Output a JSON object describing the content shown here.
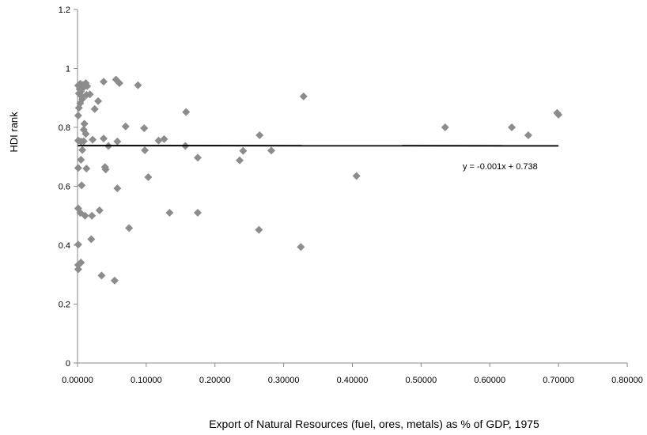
{
  "chart_data": {
    "type": "scatter",
    "title": "",
    "xlabel": "Export of Natural Resources (fuel, ores, metals) as % of GDP, 1975",
    "ylabel": "HDI rank",
    "xlim": [
      0,
      0.8
    ],
    "ylim": [
      0,
      1.2
    ],
    "x_ticks": [
      0,
      0.1,
      0.2,
      0.3,
      0.4,
      0.5,
      0.6,
      0.7,
      0.8
    ],
    "x_tick_labels": [
      "0.00000",
      "0.10000",
      "0.20000",
      "0.30000",
      "0.40000",
      "0.50000",
      "0.60000",
      "0.70000",
      "0.80000"
    ],
    "y_ticks": [
      0,
      0.2,
      0.4,
      0.6,
      0.8,
      1,
      1.2
    ],
    "y_tick_labels": [
      "0",
      "0.2",
      "0.4",
      "0.6",
      "0.8",
      "1",
      "1.2"
    ],
    "grid": false,
    "legend": "none",
    "marker": "diamond",
    "marker_color": "#8c8c8c",
    "trendline": {
      "slope": -0.001,
      "intercept": 0.738,
      "equation_label": "y = -0.001x + 0.738",
      "color": "#000000"
    },
    "points": [
      [
        0.001,
        0.942
      ],
      [
        0.004,
        0.948
      ],
      [
        0.008,
        0.944
      ],
      [
        0.012,
        0.95
      ],
      [
        0.003,
        0.93
      ],
      [
        0.005,
        0.922
      ],
      [
        0.009,
        0.936
      ],
      [
        0.014,
        0.94
      ],
      [
        0.002,
        0.915
      ],
      [
        0.006,
        0.905
      ],
      [
        0.013,
        0.91
      ],
      [
        0.018,
        0.912
      ],
      [
        0.007,
        0.896
      ],
      [
        0.004,
        0.882
      ],
      [
        0.002,
        0.866
      ],
      [
        0.001,
        0.84
      ],
      [
        0.038,
        0.955
      ],
      [
        0.056,
        0.962
      ],
      [
        0.061,
        0.95
      ],
      [
        0.088,
        0.943
      ],
      [
        0.03,
        0.889
      ],
      [
        0.025,
        0.862
      ],
      [
        0.158,
        0.852
      ],
      [
        0.329,
        0.905
      ],
      [
        0.01,
        0.812
      ],
      [
        0.009,
        0.792
      ],
      [
        0.012,
        0.778
      ],
      [
        0.07,
        0.803
      ],
      [
        0.097,
        0.797
      ],
      [
        0.265,
        0.773
      ],
      [
        0.535,
        0.8
      ],
      [
        0.632,
        0.8
      ],
      [
        0.656,
        0.773
      ],
      [
        0.698,
        0.849
      ],
      [
        0.7,
        0.843
      ],
      [
        0.001,
        0.755
      ],
      [
        0.005,
        0.752
      ],
      [
        0.009,
        0.753
      ],
      [
        0.022,
        0.758
      ],
      [
        0.038,
        0.762
      ],
      [
        0.045,
        0.737
      ],
      [
        0.058,
        0.752
      ],
      [
        0.118,
        0.755
      ],
      [
        0.126,
        0.76
      ],
      [
        0.157,
        0.737
      ],
      [
        0.007,
        0.723
      ],
      [
        0.098,
        0.722
      ],
      [
        0.241,
        0.72
      ],
      [
        0.282,
        0.721
      ],
      [
        0.175,
        0.697
      ],
      [
        0.236,
        0.688
      ],
      [
        0.005,
        0.69
      ],
      [
        0.001,
        0.662
      ],
      [
        0.013,
        0.66
      ],
      [
        0.04,
        0.665
      ],
      [
        0.041,
        0.657
      ],
      [
        0.103,
        0.631
      ],
      [
        0.406,
        0.635
      ],
      [
        0.006,
        0.603
      ],
      [
        0.058,
        0.593
      ],
      [
        0.001,
        0.525
      ],
      [
        0.004,
        0.51
      ],
      [
        0.011,
        0.5
      ],
      [
        0.021,
        0.5
      ],
      [
        0.032,
        0.518
      ],
      [
        0.134,
        0.51
      ],
      [
        0.175,
        0.51
      ],
      [
        0.075,
        0.458
      ],
      [
        0.264,
        0.452
      ],
      [
        0.02,
        0.42
      ],
      [
        0.001,
        0.402
      ],
      [
        0.325,
        0.394
      ],
      [
        0.005,
        0.341
      ],
      [
        0.001,
        0.333
      ],
      [
        0.001,
        0.318
      ],
      [
        0.035,
        0.297
      ],
      [
        0.054,
        0.28
      ]
    ]
  }
}
